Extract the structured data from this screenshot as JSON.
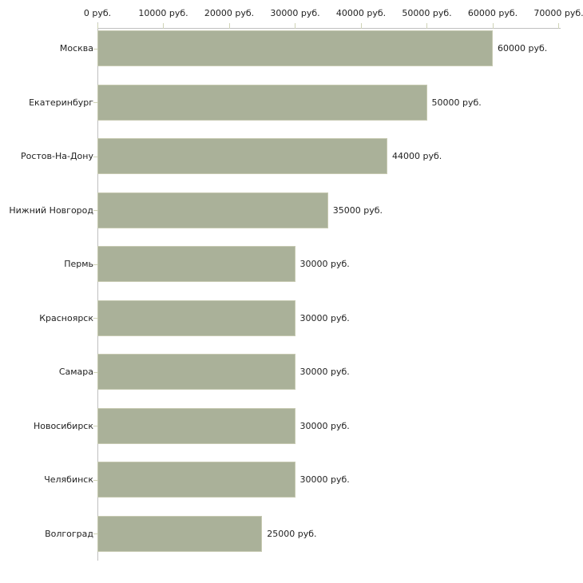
{
  "chart_data": {
    "type": "bar",
    "orientation": "horizontal",
    "title": "",
    "categories": [
      "Москва",
      "Екатеринбург",
      "Ростов-На-Дону",
      "Нижний Новгород",
      "Пермь",
      "Красноярск",
      "Самара",
      "Новосибирск",
      "Челябинск",
      "Волгоград"
    ],
    "values": [
      60000,
      50000,
      44000,
      35000,
      30000,
      30000,
      30000,
      30000,
      30000,
      25000
    ],
    "value_labels": [
      "60000 руб.",
      "50000 руб.",
      "44000 руб.",
      "35000 руб.",
      "30000 руб.",
      "30000 руб.",
      "30000 руб.",
      "30000 руб.",
      "30000 руб.",
      "25000 руб."
    ],
    "x_tick_values": [
      0,
      10000,
      20000,
      30000,
      40000,
      50000,
      60000,
      70000
    ],
    "x_tick_labels": [
      "0 руб.",
      "10000 руб.",
      "20000 руб.",
      "30000 руб.",
      "40000 руб.",
      "50000 руб.",
      "60000 руб.",
      "70000 руб."
    ],
    "xlim": [
      0,
      70000
    ],
    "unit": "руб.",
    "grid": false,
    "legend": false,
    "colors": {
      "bar_fill": "#aab199",
      "bar_border": "#c6c9b1",
      "axis_line": "#c0c0c0",
      "tick_mark": "#cfd3b6",
      "text": "#222222",
      "background": "#ffffff"
    }
  }
}
